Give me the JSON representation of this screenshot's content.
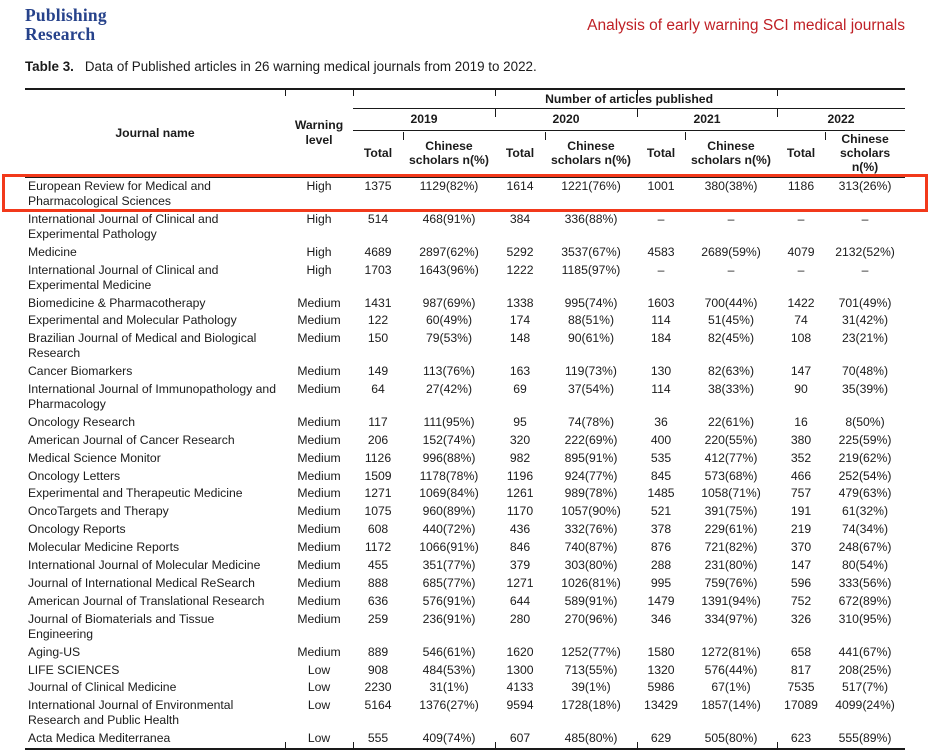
{
  "page": {
    "logo_line1": "Publishing",
    "logo_line2": "Research",
    "running_head": "Analysis of early warning SCI medical journals",
    "caption_label": "Table 3.",
    "caption_text": "Data of Published articles in 26 warning medical journals from 2019 to 2022."
  },
  "colors": {
    "logo_blue": "#26428b",
    "heading_red": "#bf2026",
    "highlight_red": "#f2391b"
  },
  "table": {
    "header": {
      "journal": "Journal name",
      "warning": "Warning level",
      "group": "Number of articles published",
      "years": [
        "2019",
        "2020",
        "2021",
        "2022"
      ],
      "total": "Total",
      "chinese": "Chinese scholars n(%)"
    },
    "rows": [
      {
        "journal": "European Review for Medical and Pharmacological Sciences",
        "warning": "High",
        "values": [
          "1375",
          "1129(82%)",
          "1614",
          "1221(76%)",
          "1001",
          "380(38%)",
          "1186",
          "313(26%)"
        ],
        "highlighted": true
      },
      {
        "journal": "International Journal of Clinical and Experimental Pathology",
        "warning": "High",
        "values": [
          "514",
          "468(91%)",
          "384",
          "336(88%)",
          "–",
          "–",
          "–",
          "–"
        ]
      },
      {
        "journal": "Medicine",
        "warning": "High",
        "values": [
          "4689",
          "2897(62%)",
          "5292",
          "3537(67%)",
          "4583",
          "2689(59%)",
          "4079",
          "2132(52%)"
        ]
      },
      {
        "journal": "International Journal of Clinical and Experimental Medicine",
        "warning": "High",
        "values": [
          "1703",
          "1643(96%)",
          "1222",
          "1185(97%)",
          "–",
          "–",
          "–",
          "–"
        ]
      },
      {
        "journal": "Biomedicine & Pharmacotherapy",
        "warning": "Medium",
        "values": [
          "1431",
          "987(69%)",
          "1338",
          "995(74%)",
          "1603",
          "700(44%)",
          "1422",
          "701(49%)"
        ]
      },
      {
        "journal": "Experimental and Molecular Pathology",
        "warning": "Medium",
        "values": [
          "122",
          "60(49%)",
          "174",
          "88(51%)",
          "114",
          "51(45%)",
          "74",
          "31(42%)"
        ]
      },
      {
        "journal": "Brazilian Journal of Medical and Biological Research",
        "warning": "Medium",
        "values": [
          "150",
          "79(53%)",
          "148",
          "90(61%)",
          "184",
          "82(45%)",
          "108",
          "23(21%)"
        ]
      },
      {
        "journal": "Cancer Biomarkers",
        "warning": "Medium",
        "values": [
          "149",
          "113(76%)",
          "163",
          "119(73%)",
          "130",
          "82(63%)",
          "147",
          "70(48%)"
        ]
      },
      {
        "journal": "International Journal of Immunopathology and Pharmacology",
        "warning": "Medium",
        "values": [
          "64",
          "27(42%)",
          "69",
          "37(54%)",
          "114",
          "38(33%)",
          "90",
          "35(39%)"
        ]
      },
      {
        "journal": "Oncology Research",
        "warning": "Medium",
        "values": [
          "117",
          "111(95%)",
          "95",
          "74(78%)",
          "36",
          "22(61%)",
          "16",
          "8(50%)"
        ]
      },
      {
        "journal": "American Journal of Cancer Research",
        "warning": "Medium",
        "values": [
          "206",
          "152(74%)",
          "320",
          "222(69%)",
          "400",
          "220(55%)",
          "380",
          "225(59%)"
        ]
      },
      {
        "journal": "Medical Science Monitor",
        "warning": "Medium",
        "values": [
          "1126",
          "996(88%)",
          "982",
          "895(91%)",
          "535",
          "412(77%)",
          "352",
          "219(62%)"
        ]
      },
      {
        "journal": "Oncology Letters",
        "warning": "Medium",
        "values": [
          "1509",
          "1178(78%)",
          "1196",
          "924(77%)",
          "845",
          "573(68%)",
          "466",
          "252(54%)"
        ]
      },
      {
        "journal": "Experimental and Therapeutic Medicine",
        "warning": "Medium",
        "values": [
          "1271",
          "1069(84%)",
          "1261",
          "989(78%)",
          "1485",
          "1058(71%)",
          "757",
          "479(63%)"
        ]
      },
      {
        "journal": "OncoTargets and Therapy",
        "warning": "Medium",
        "values": [
          "1075",
          "960(89%)",
          "1170",
          "1057(90%)",
          "521",
          "391(75%)",
          "191",
          "61(32%)"
        ]
      },
      {
        "journal": "Oncology Reports",
        "warning": "Medium",
        "values": [
          "608",
          "440(72%)",
          "436",
          "332(76%)",
          "378",
          "229(61%)",
          "219",
          "74(34%)"
        ]
      },
      {
        "journal": "Molecular Medicine Reports",
        "warning": "Medium",
        "values": [
          "1172",
          "1066(91%)",
          "846",
          "740(87%)",
          "876",
          "721(82%)",
          "370",
          "248(67%)"
        ]
      },
      {
        "journal": "International Journal of Molecular Medicine",
        "warning": "Medium",
        "values": [
          "455",
          "351(77%)",
          "379",
          "303(80%)",
          "288",
          "231(80%)",
          "147",
          "80(54%)"
        ]
      },
      {
        "journal": "Journal of International Medical ReSearch",
        "warning": "Medium",
        "values": [
          "888",
          "685(77%)",
          "1271",
          "1026(81%)",
          "995",
          "759(76%)",
          "596",
          "333(56%)"
        ]
      },
      {
        "journal": "American Journal of Translational Research",
        "warning": "Medium",
        "values": [
          "636",
          "576(91%)",
          "644",
          "589(91%)",
          "1479",
          "1391(94%)",
          "752",
          "672(89%)"
        ]
      },
      {
        "journal": "Journal of Biomaterials and Tissue Engineering",
        "warning": "Medium",
        "values": [
          "259",
          "236(91%)",
          "280",
          "270(96%)",
          "346",
          "334(97%)",
          "326",
          "310(95%)"
        ]
      },
      {
        "journal": "Aging-US",
        "warning": "Medium",
        "values": [
          "889",
          "546(61%)",
          "1620",
          "1252(77%)",
          "1580",
          "1272(81%)",
          "658",
          "441(67%)"
        ]
      },
      {
        "journal": "LIFE SCIENCES",
        "warning": "Low",
        "values": [
          "908",
          "484(53%)",
          "1300",
          "713(55%)",
          "1320",
          "576(44%)",
          "817",
          "208(25%)"
        ]
      },
      {
        "journal": "Journal of Clinical Medicine",
        "warning": "Low",
        "values": [
          "2230",
          "31(1%)",
          "4133",
          "39(1%)",
          "5986",
          "67(1%)",
          "7535",
          "517(7%)"
        ]
      },
      {
        "journal": "International Journal of Environmental Research and Public Health",
        "warning": "Low",
        "values": [
          "5164",
          "1376(27%)",
          "9594",
          "1728(18%)",
          "13429",
          "1857(14%)",
          "17089",
          "4099(24%)"
        ]
      },
      {
        "journal": "Acta Medica Mediterranea",
        "warning": "Low",
        "values": [
          "555",
          "409(74%)",
          "607",
          "485(80%)",
          "629",
          "505(80%)",
          "623",
          "555(89%)"
        ]
      }
    ]
  }
}
